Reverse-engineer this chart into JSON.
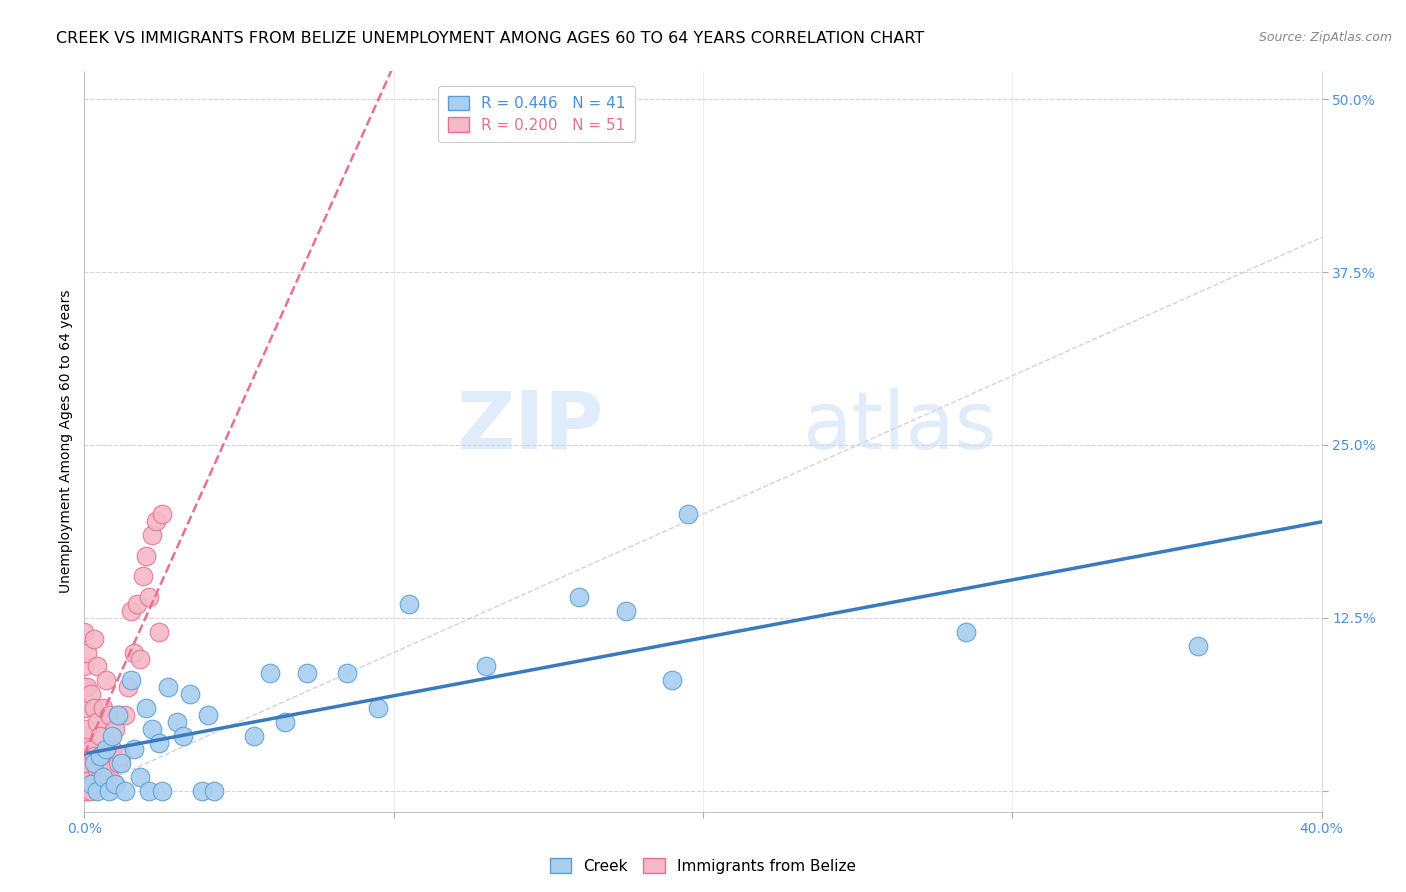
{
  "title": "CREEK VS IMMIGRANTS FROM BELIZE UNEMPLOYMENT AMONG AGES 60 TO 64 YEARS CORRELATION CHART",
  "source": "Source: ZipAtlas.com",
  "ylabel": "Unemployment Among Ages 60 to 64 years",
  "legend_creek": "Creek",
  "legend_belize": "Immigrants from Belize",
  "creek_R": "0.446",
  "creek_N": "41",
  "belize_R": "0.200",
  "belize_N": "51",
  "xmin": 0.0,
  "xmax": 0.4,
  "ymin": -0.015,
  "ymax": 0.52,
  "xticks": [
    0.0,
    0.1,
    0.2,
    0.3,
    0.4
  ],
  "xticklabels": [
    "0.0%",
    "",
    "",
    "",
    "40.0%"
  ],
  "yticks": [
    0.0,
    0.125,
    0.25,
    0.375,
    0.5
  ],
  "yticklabels": [
    "",
    "12.5%",
    "25.0%",
    "37.5%",
    "50.0%"
  ],
  "background_color": "#ffffff",
  "grid_color": "#d0d0d0",
  "creek_color": "#a8cff0",
  "belize_color": "#f5b8c8",
  "creek_edge_color": "#5a9fd4",
  "belize_edge_color": "#e87090",
  "creek_line_color": "#3a7abf",
  "belize_line_color": "#e87090",
  "diagonal_color": "#c8c8c8",
  "creek_points_x": [
    0.002,
    0.003,
    0.004,
    0.005,
    0.006,
    0.007,
    0.008,
    0.009,
    0.01,
    0.011,
    0.012,
    0.013,
    0.015,
    0.016,
    0.018,
    0.02,
    0.021,
    0.022,
    0.024,
    0.025,
    0.027,
    0.03,
    0.032,
    0.034,
    0.038,
    0.04,
    0.042,
    0.055,
    0.06,
    0.065,
    0.072,
    0.085,
    0.095,
    0.105,
    0.13,
    0.16,
    0.175,
    0.19,
    0.195,
    0.285,
    0.36
  ],
  "creek_points_y": [
    0.005,
    0.02,
    0.0,
    0.025,
    0.01,
    0.03,
    0.0,
    0.04,
    0.005,
    0.055,
    0.02,
    0.0,
    0.08,
    0.03,
    0.01,
    0.06,
    0.0,
    0.045,
    0.035,
    0.0,
    0.075,
    0.05,
    0.04,
    0.07,
    0.0,
    0.055,
    0.0,
    0.04,
    0.085,
    0.05,
    0.085,
    0.085,
    0.06,
    0.135,
    0.09,
    0.14,
    0.13,
    0.08,
    0.2,
    0.115,
    0.105
  ],
  "belize_points_x": [
    0.0,
    0.0,
    0.0,
    0.0,
    0.0,
    0.0,
    0.0,
    0.0,
    0.0,
    0.001,
    0.001,
    0.001,
    0.001,
    0.001,
    0.002,
    0.002,
    0.002,
    0.003,
    0.003,
    0.003,
    0.003,
    0.004,
    0.004,
    0.004,
    0.005,
    0.005,
    0.006,
    0.006,
    0.007,
    0.007,
    0.008,
    0.008,
    0.009,
    0.01,
    0.01,
    0.011,
    0.011,
    0.012,
    0.013,
    0.014,
    0.015,
    0.016,
    0.017,
    0.018,
    0.019,
    0.02,
    0.021,
    0.022,
    0.023,
    0.024,
    0.025
  ],
  "belize_points_y": [
    0.0,
    0.005,
    0.015,
    0.02,
    0.04,
    0.06,
    0.075,
    0.09,
    0.115,
    0.0,
    0.02,
    0.045,
    0.075,
    0.1,
    0.0,
    0.03,
    0.07,
    0.005,
    0.025,
    0.06,
    0.11,
    0.015,
    0.05,
    0.09,
    0.01,
    0.04,
    0.02,
    0.06,
    0.015,
    0.08,
    0.015,
    0.055,
    0.03,
    0.005,
    0.045,
    0.02,
    0.055,
    0.025,
    0.055,
    0.075,
    0.13,
    0.1,
    0.135,
    0.095,
    0.155,
    0.17,
    0.14,
    0.185,
    0.195,
    0.115,
    0.2
  ],
  "watermark_zip": "ZIP",
  "watermark_atlas": "atlas",
  "title_fontsize": 11.5,
  "label_fontsize": 10,
  "tick_fontsize": 10,
  "legend_fontsize": 11
}
